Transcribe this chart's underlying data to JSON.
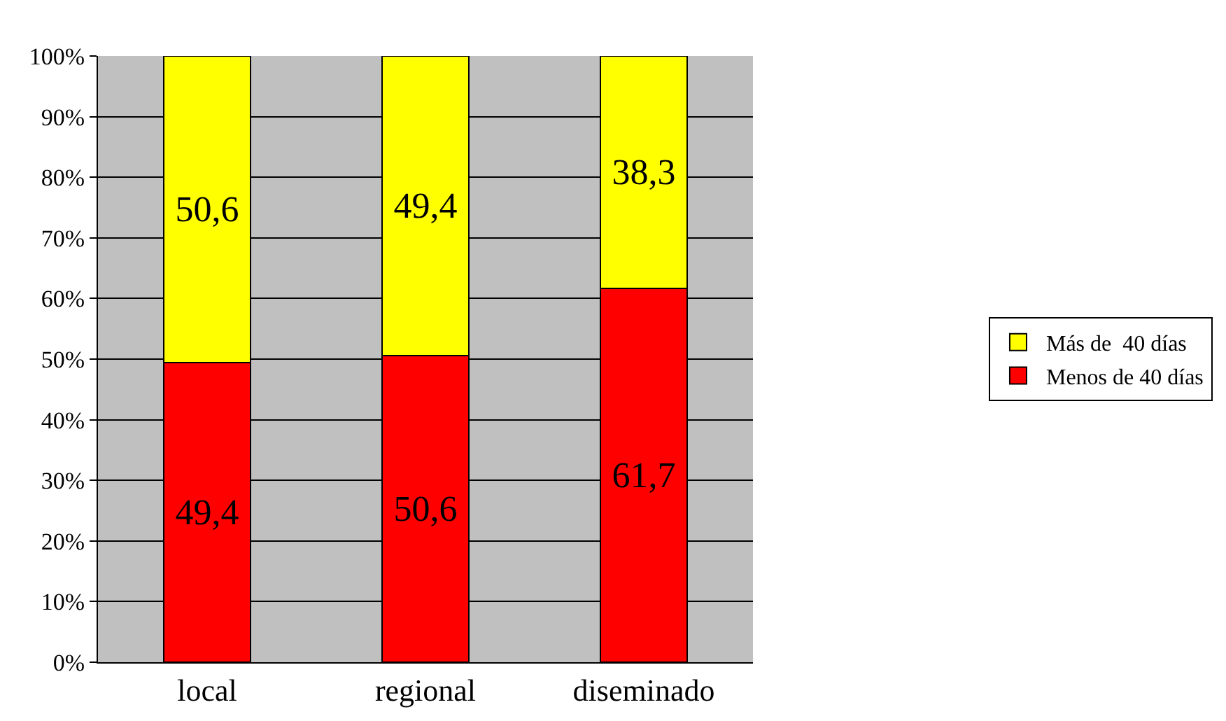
{
  "chart_data": {
    "type": "bar",
    "stacked": true,
    "categories": [
      "local",
      "regional",
      "diseminado"
    ],
    "series": [
      {
        "name": "Menos de 40 días",
        "color": "#ff0000",
        "values": [
          49.4,
          50.6,
          61.7
        ],
        "value_labels": [
          "49,4",
          "50,6",
          "61,7"
        ]
      },
      {
        "name": "Más de  40 días",
        "color": "#ffff00",
        "values": [
          50.6,
          49.4,
          38.3
        ],
        "value_labels": [
          "50,6",
          "49,4",
          "38,3"
        ]
      }
    ],
    "ylim": [
      0,
      100
    ],
    "yticks": [
      {
        "value": 0,
        "label": "0%"
      },
      {
        "value": 10,
        "label": "10%"
      },
      {
        "value": 20,
        "label": "20%"
      },
      {
        "value": 30,
        "label": "30%"
      },
      {
        "value": 40,
        "label": "40%"
      },
      {
        "value": 50,
        "label": "50%"
      },
      {
        "value": 60,
        "label": "60%"
      },
      {
        "value": 70,
        "label": "70%"
      },
      {
        "value": 80,
        "label": "80%"
      },
      {
        "value": 90,
        "label": "90%"
      },
      {
        "value": 100,
        "label": "100%"
      }
    ],
    "grid": "y",
    "legend": "right"
  }
}
